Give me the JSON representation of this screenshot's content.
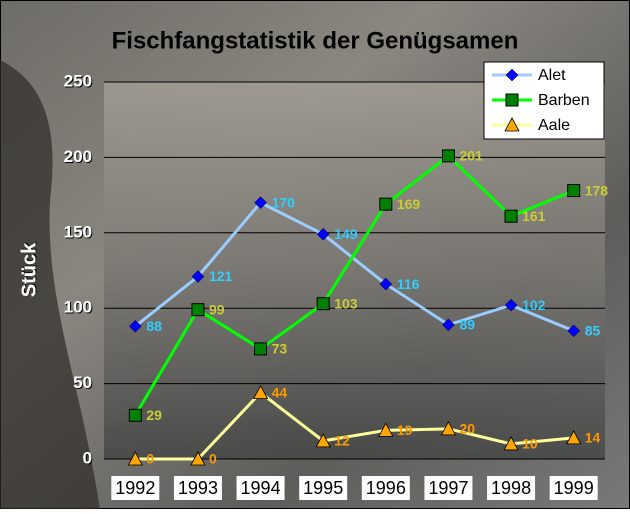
{
  "chart_data": {
    "type": "line",
    "title": "Fischfangstatistik der Genügsamen",
    "y_label": "Stück",
    "categories": [
      "1992",
      "1993",
      "1994",
      "1995",
      "1996",
      "1997",
      "1998",
      "1999"
    ],
    "series": [
      {
        "name": "Alet",
        "color": "#99ccff",
        "marker_color": "#0000ff",
        "label_color": "#33ccff",
        "marker": "diamond",
        "values": [
          88,
          121,
          170,
          149,
          116,
          89,
          102,
          85
        ]
      },
      {
        "name": "Barben",
        "color": "#00ff00",
        "marker_color": "#008000",
        "label_color": "#cccc33",
        "marker": "square",
        "values": [
          29,
          99,
          73,
          103,
          169,
          201,
          161,
          178
        ]
      },
      {
        "name": "Aale",
        "color": "#ffff99",
        "marker_color": "#ffa500",
        "label_color": "#ff9900",
        "marker": "triangle",
        "values": [
          0,
          0,
          44,
          12,
          19,
          20,
          10,
          14
        ]
      }
    ],
    "ylim": [
      0,
      250
    ],
    "yticks": [
      0,
      50,
      100,
      150,
      200,
      250
    ],
    "grid": true,
    "legend": "top-right"
  }
}
